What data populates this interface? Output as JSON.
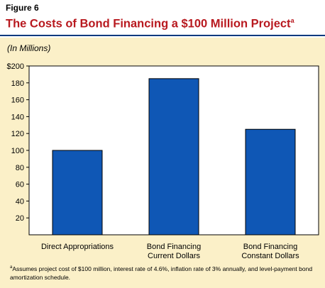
{
  "figure_label": "Figure 6",
  "title": "The Costs of Bond Financing a $100 Million Project",
  "title_footnote_mark": "a",
  "units_note": "(In Millions)",
  "footnote_mark": "a",
  "footnote_text": "Assumes project cost of $100 million, interest rate of 4.6%, inflation rate of 3% annually, and level-payment bond amortization schedule.",
  "colors": {
    "bar": "#0f57b5",
    "title": "#b8191f",
    "background_panel": "#fbf0c8",
    "plot_area": "#ffffff"
  },
  "chart_data": {
    "type": "bar",
    "categories": [
      [
        "Direct Appropriations"
      ],
      [
        "Bond Financing",
        "Current Dollars"
      ],
      [
        "Bond Financing",
        "Constant Dollars"
      ]
    ],
    "values": [
      100,
      185,
      125
    ],
    "ylim": [
      0,
      200
    ],
    "yticks": [
      20,
      40,
      60,
      80,
      100,
      120,
      140,
      160,
      180,
      200
    ],
    "ytick_labels": [
      "20",
      "40",
      "60",
      "80",
      "100",
      "120",
      "140",
      "160",
      "180",
      "$200"
    ],
    "grid": false,
    "legend": "none"
  }
}
